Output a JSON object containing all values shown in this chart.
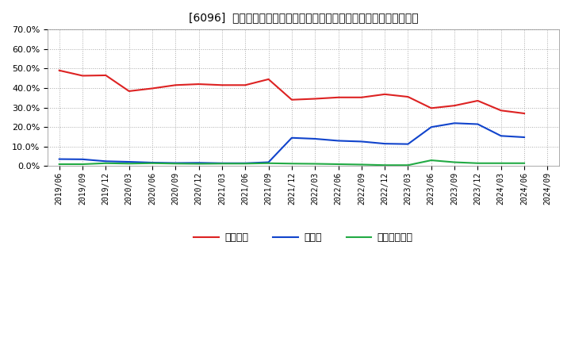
{
  "title": "[6096]  自己資本、のれん、繰延税金資産の総資産に対する比率の推移",
  "xlabels": [
    "2019/06",
    "2019/09",
    "2019/12",
    "2020/03",
    "2020/06",
    "2020/09",
    "2020/12",
    "2021/03",
    "2021/06",
    "2021/09",
    "2021/12",
    "2022/03",
    "2022/06",
    "2022/09",
    "2022/12",
    "2023/03",
    "2023/06",
    "2023/09",
    "2023/12",
    "2024/03",
    "2024/06",
    "2024/09"
  ],
  "jikoshihon": [
    0.49,
    0.463,
    0.465,
    0.384,
    0.398,
    0.415,
    0.42,
    0.415,
    0.415,
    0.445,
    0.34,
    0.345,
    0.352,
    0.352,
    0.368,
    0.355,
    0.297,
    0.31,
    0.335,
    0.285,
    0.27,
    null
  ],
  "noren": [
    0.036,
    0.035,
    0.025,
    0.022,
    0.018,
    0.016,
    0.017,
    0.015,
    0.015,
    0.02,
    0.145,
    0.14,
    0.13,
    0.126,
    0.115,
    0.113,
    0.2,
    0.22,
    0.215,
    0.155,
    0.148,
    null
  ],
  "kunoze": [
    0.01,
    0.01,
    0.015,
    0.013,
    0.015,
    0.013,
    0.012,
    0.013,
    0.013,
    0.015,
    0.013,
    0.012,
    0.01,
    0.008,
    0.005,
    0.005,
    0.03,
    0.02,
    0.015,
    0.015,
    0.015,
    null
  ],
  "ylim": [
    0.0,
    0.7
  ],
  "yticks": [
    0.0,
    0.1,
    0.2,
    0.3,
    0.4,
    0.5,
    0.6,
    0.7
  ],
  "color_jikoshihon": "#dd2222",
  "color_noren": "#1144cc",
  "color_kunoze": "#22aa44",
  "legend_labels": [
    "自己資本",
    "のれん",
    "繰延税金資産"
  ],
  "background_color": "#ffffff",
  "grid_color": "#aaaaaa",
  "title_prefix": "[6096]  "
}
